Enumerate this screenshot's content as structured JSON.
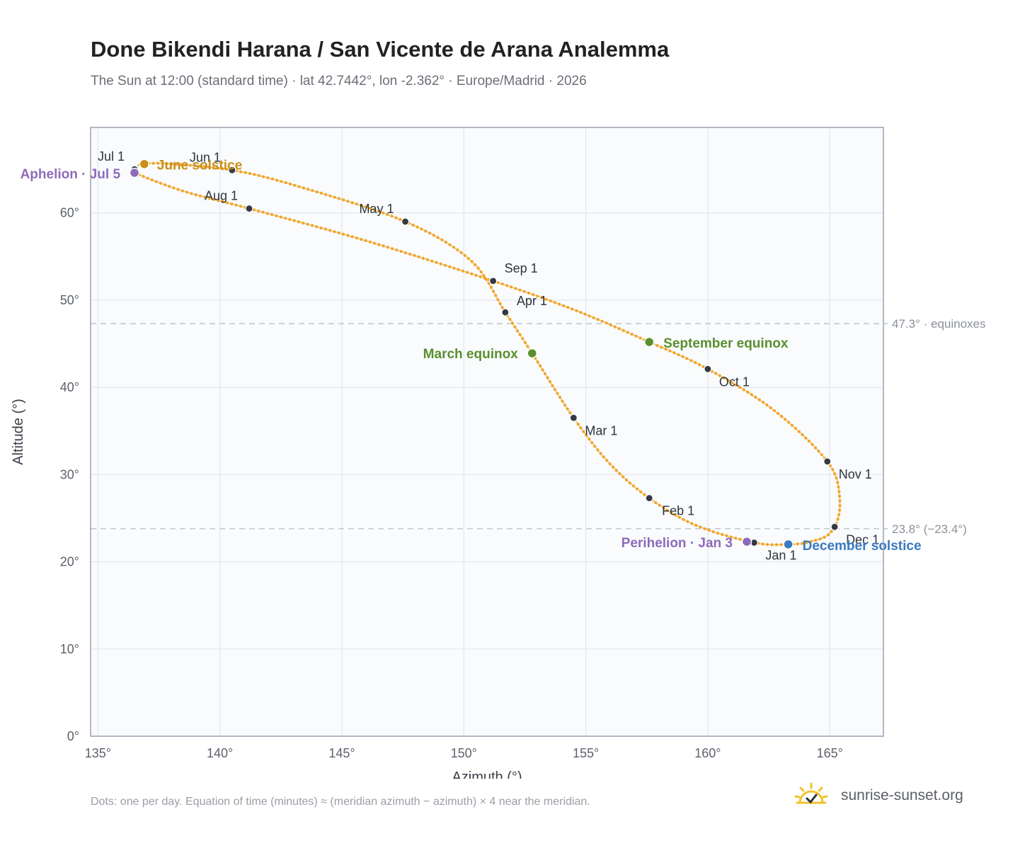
{
  "title": "Done Bikendi Harana / San Vicente de Arana Analemma",
  "subtitle": "The Sun at 12:00 (standard time) · lat 42.7442°, lon -2.362° · Europe/Madrid · 2026",
  "footnote": "Dots: one per day. Equation of time (minutes) ≈ (meridian azimuth − azimuth) × 4 near the meridian.",
  "brand": {
    "text": "sunrise-sunset.org",
    "icon": "sun-check-icon"
  },
  "colors": {
    "curve": "#f0a52a",
    "month_dot": "#333a44",
    "solstice_june": "#c8901a",
    "solstice_december": "#3a7abf",
    "equinox": "#5a8f2e",
    "apsis": "#8e6bb8",
    "grid": "#e3e7ed",
    "reference_line": "#c4c9d0",
    "plot_bg": "#f9fbfd",
    "frame": "#9aa3ae"
  },
  "chart_data": {
    "type": "scatter",
    "xlabel": "Azimuth (°)",
    "ylabel": "Altitude (°)",
    "xlim": [
      134.7,
      167.2
    ],
    "ylim": [
      0,
      69.8
    ],
    "x_ticks": [
      135,
      140,
      145,
      150,
      155,
      160,
      165
    ],
    "x_tick_labels": [
      "135°",
      "140°",
      "145°",
      "150°",
      "155°",
      "160°",
      "165°"
    ],
    "y_ticks": [
      0,
      10,
      20,
      30,
      40,
      50,
      60
    ],
    "y_tick_labels": [
      "0°",
      "10°",
      "20°",
      "30°",
      "40°",
      "50°",
      "60°"
    ],
    "grid": true,
    "reference_lines": [
      {
        "y": 47.3,
        "label": "47.3° · equinoxes"
      },
      {
        "y": 23.8,
        "label": "23.8° (−23.4°)"
      }
    ],
    "month_markers": [
      {
        "label": "Jan 1",
        "x": 161.9,
        "y": 22.2
      },
      {
        "label": "Feb 1",
        "x": 157.6,
        "y": 27.3
      },
      {
        "label": "Mar 1",
        "x": 154.5,
        "y": 36.5
      },
      {
        "label": "Apr 1",
        "x": 151.7,
        "y": 48.6
      },
      {
        "label": "May 1",
        "x": 147.6,
        "y": 59.0
      },
      {
        "label": "Jun 1",
        "x": 140.5,
        "y": 64.9
      },
      {
        "label": "Jul 1",
        "x": 136.5,
        "y": 65.0
      },
      {
        "label": "Aug 1",
        "x": 141.2,
        "y": 60.5
      },
      {
        "label": "Sep 1",
        "x": 151.2,
        "y": 52.2
      },
      {
        "label": "Oct 1",
        "x": 160.0,
        "y": 42.1
      },
      {
        "label": "Nov 1",
        "x": 164.9,
        "y": 31.5
      },
      {
        "label": "Dec 1",
        "x": 165.2,
        "y": 24.0
      }
    ],
    "events": [
      {
        "label": "June solstice",
        "x": 136.9,
        "y": 65.6,
        "kind": "solstice_june"
      },
      {
        "label": "December solstice",
        "x": 163.3,
        "y": 22.0,
        "kind": "solstice_december"
      },
      {
        "label": "March equinox",
        "x": 152.8,
        "y": 43.9,
        "kind": "equinox"
      },
      {
        "label": "September equinox",
        "x": 157.6,
        "y": 45.2,
        "kind": "equinox"
      },
      {
        "label": "Aphelion · Jul 5",
        "x": 136.5,
        "y": 64.6,
        "kind": "apsis"
      },
      {
        "label": "Perihelion · Jan 3",
        "x": 161.6,
        "y": 22.3,
        "kind": "apsis"
      }
    ],
    "series": [
      {
        "daily_path": [
          [
            163.3,
            22.0
          ],
          [
            161.9,
            22.2
          ],
          [
            159.5,
            24.2
          ],
          [
            157.6,
            27.3
          ],
          [
            156.0,
            31.2
          ],
          [
            154.5,
            36.5
          ],
          [
            152.8,
            43.9
          ],
          [
            151.7,
            48.6
          ],
          [
            150.3,
            54.5
          ],
          [
            147.6,
            59.0
          ],
          [
            143.5,
            62.8
          ],
          [
            140.5,
            64.9
          ],
          [
            137.2,
            65.7
          ],
          [
            136.5,
            65.0
          ],
          [
            136.6,
            64.5
          ],
          [
            138.5,
            62.5
          ],
          [
            141.2,
            60.5
          ],
          [
            146.0,
            56.8
          ],
          [
            151.2,
            52.2
          ],
          [
            154.6,
            48.8
          ],
          [
            157.6,
            45.2
          ],
          [
            160.0,
            42.1
          ],
          [
            162.7,
            37.4
          ],
          [
            164.9,
            31.5
          ],
          [
            165.4,
            27.5
          ],
          [
            165.2,
            24.0
          ],
          [
            164.3,
            22.4
          ],
          [
            163.3,
            22.0
          ]
        ]
      }
    ]
  }
}
